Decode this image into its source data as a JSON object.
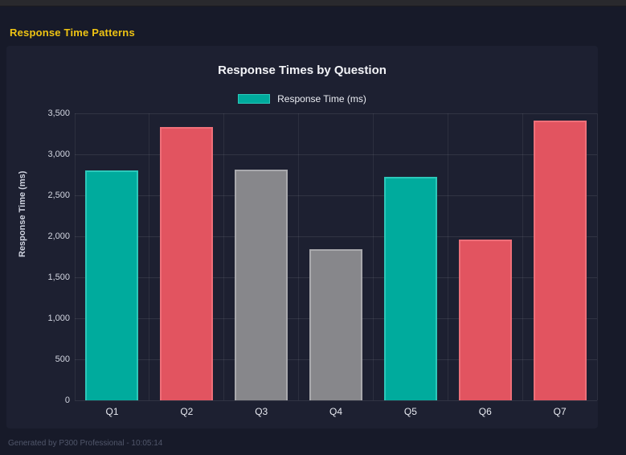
{
  "page": {
    "header_title": "Response Time Patterns",
    "footer": "Generated by P300 Professional - 10:05:14"
  },
  "colors": {
    "page_bg": "#171a29",
    "panel_bg": "#1d2031",
    "topbar_bg": "#29292d",
    "accent_yellow": "#efc413",
    "teal": "#00ab9d",
    "red": "#e25460",
    "gray": "#87878b",
    "grid": "rgba(255,255,255,0.09)"
  },
  "chart_data": {
    "type": "bar",
    "title": "Response Times by Question",
    "legend_label": "Response Time (ms)",
    "legend_position": "top",
    "legend_color": "#00ab9d",
    "xlabel": "",
    "ylabel": "Response Time (ms)",
    "ylim": [
      0,
      3500
    ],
    "ytick_step": 500,
    "ytick_labels": [
      "0",
      "500",
      "1,000",
      "1,500",
      "2,000",
      "2,500",
      "3,000",
      "3,500"
    ],
    "grid": true,
    "categories": [
      "Q1",
      "Q2",
      "Q3",
      "Q4",
      "Q5",
      "Q6",
      "Q7"
    ],
    "values": [
      2800,
      3330,
      2810,
      1840,
      2730,
      1960,
      3410
    ],
    "bar_colors": [
      "#00ab9d",
      "#e25460",
      "#87878b",
      "#87878b",
      "#00ab9d",
      "#e25460",
      "#e25460"
    ],
    "bar_border_colors": [
      "#2cc8ba",
      "#ee6f79",
      "#a9a9ad",
      "#a9a9ad",
      "#2cc8ba",
      "#ee6f79",
      "#ee6f79"
    ]
  }
}
